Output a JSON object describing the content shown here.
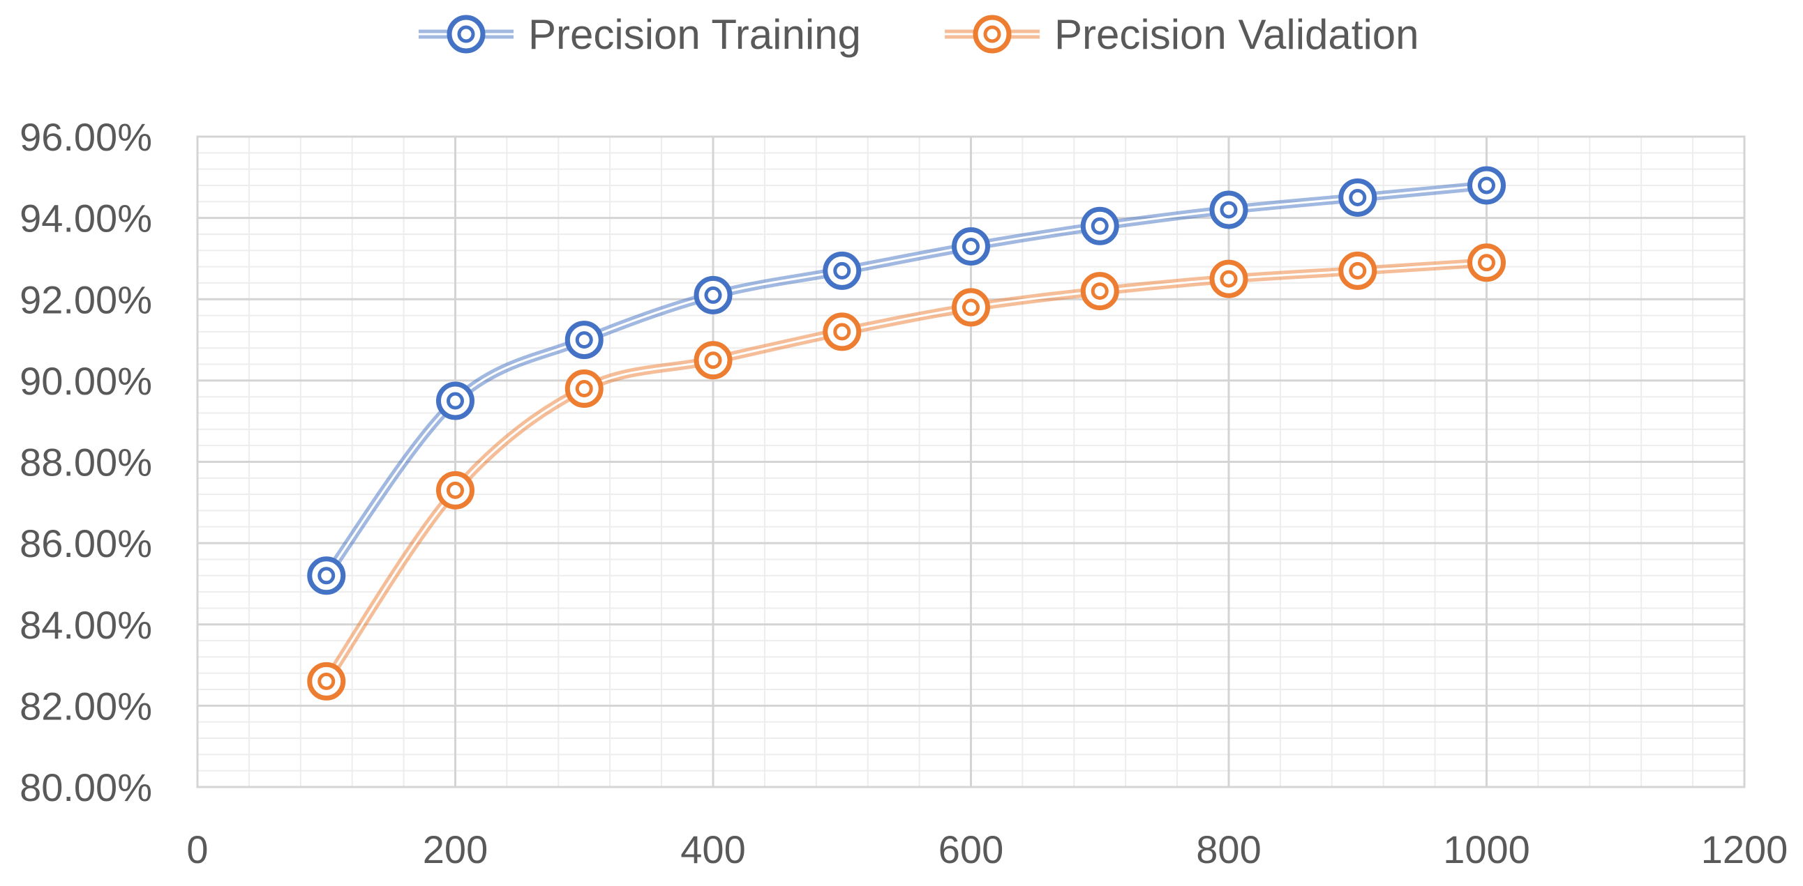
{
  "chart_data": {
    "type": "line",
    "title": "",
    "xlabel": "",
    "ylabel": "",
    "x": [
      100,
      200,
      300,
      400,
      500,
      600,
      700,
      800,
      900,
      1000
    ],
    "series": [
      {
        "name": "Precision Training",
        "color": "#4472C4",
        "values": [
          85.2,
          89.5,
          91.0,
          92.1,
          92.7,
          93.3,
          93.8,
          94.2,
          94.5,
          94.8
        ]
      },
      {
        "name": "Precision Validation",
        "color": "#ED7D31",
        "values": [
          82.6,
          87.3,
          89.8,
          90.5,
          91.2,
          91.8,
          92.2,
          92.5,
          92.7,
          92.9
        ]
      }
    ],
    "xlim": [
      0,
      1200
    ],
    "ylim": [
      80,
      96
    ],
    "x_major_step": 200,
    "x_minor_step": 40,
    "y_major_step": 2,
    "y_minor_step": 0.4,
    "x_tick_labels": [
      "0",
      "200",
      "400",
      "600",
      "800",
      "1000",
      "1200"
    ],
    "y_tick_labels": [
      "80.00%",
      "82.00%",
      "84.00%",
      "86.00%",
      "88.00%",
      "90.00%",
      "92.00%",
      "94.00%",
      "96.00%"
    ],
    "grid": true,
    "legend_position": "top-center",
    "marker": "double-circle",
    "smooth_lines": true
  }
}
